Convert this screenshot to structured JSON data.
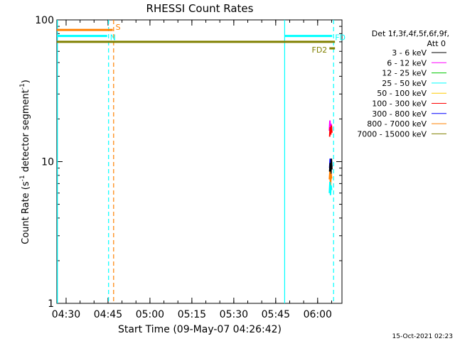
{
  "chart_data": {
    "type": "line",
    "title": "RHESSI Count Rates",
    "xlabel": "Start Time (09-May-07 04:26:42)",
    "ylabel_main": "Count Rate (s",
    "ylabel_sup1": "-1",
    "ylabel_mid": " detector segment",
    "ylabel_sup2": "-1",
    "ylabel_end": ")",
    "y_scale": "log",
    "ylim": [
      1,
      100
    ],
    "xlim_minutes": [
      0,
      102
    ],
    "x_ticks": [
      {
        "label": "04:30",
        "min": 3.3
      },
      {
        "label": "04:45",
        "min": 18.3
      },
      {
        "label": "05:00",
        "min": 33.3
      },
      {
        "label": "05:15",
        "min": 48.3
      },
      {
        "label": "05:30",
        "min": 63.3
      },
      {
        "label": "05:45",
        "min": 78.3
      },
      {
        "label": "06:00",
        "min": 93.3
      }
    ],
    "y_ticks": [
      {
        "label": "100",
        "value": 100
      },
      {
        "label": "10",
        "value": 10
      },
      {
        "label": "1",
        "value": 1
      }
    ],
    "legend": {
      "header": [
        "Det 1f,3f,4f,5f,6f,9f,",
        "Att 0"
      ],
      "placement": "right",
      "entries": [
        {
          "label": "3 - 6 keV",
          "color": "#000000"
        },
        {
          "label": "6 - 12 keV",
          "color": "#ff00ff"
        },
        {
          "label": "12 - 25 keV",
          "color": "#00cc00"
        },
        {
          "label": "25 - 50 keV",
          "color": "#00ffff"
        },
        {
          "label": "50 - 100 keV",
          "color": "#ffcc00"
        },
        {
          "label": "100 - 300 keV",
          "color": "#ff0000"
        },
        {
          "label": "300 - 800 keV",
          "color": "#0000ff"
        },
        {
          "label": "800 - 7000 keV",
          "color": "#ff8000"
        },
        {
          "label": "7000 - 15000 keV",
          "color": "#808000"
        }
      ]
    },
    "flag_bars": [
      {
        "label": "S",
        "color": "#ff8000",
        "y": 85,
        "x_start": 0,
        "x_end": 20
      },
      {
        "label": "N",
        "color": "#00ffff",
        "y": 77,
        "x_start": 0,
        "x_end": 18,
        "label_inline": true
      },
      {
        "label": "",
        "color": "#808000",
        "y": 70,
        "x_start": 0,
        "x_end": 99.5
      },
      {
        "label": "FD",
        "color": "#00ffff",
        "y": 77,
        "x_start": 81.5,
        "x_end": 98.5
      },
      {
        "label": "FD2",
        "color": "#808000",
        "y": 63,
        "x_start": 97.5,
        "x_end": 99.5,
        "label_left": true
      }
    ],
    "vertical_lines": [
      {
        "min": 0.2,
        "color": "#00ffff",
        "style": "solid"
      },
      {
        "min": 18.5,
        "color": "#00ffff",
        "style": "dashed"
      },
      {
        "min": 20.3,
        "color": "#ff8000",
        "style": "dashed"
      },
      {
        "min": 81.5,
        "color": "#00ffff",
        "style": "solid"
      },
      {
        "min": 99.0,
        "color": "#00ffff",
        "style": "dashed"
      }
    ],
    "series": [
      {
        "name": "6 - 12 keV",
        "color": "#ff00ff",
        "x": [
          97.5,
          97.7,
          97.9,
          98.1,
          98.3
        ],
        "y": [
          16.5,
          19.5,
          15.5,
          18.5,
          17.0
        ]
      },
      {
        "name": "100 - 300 keV",
        "color": "#ff0000",
        "x": [
          97.6,
          97.8,
          98.0,
          98.2,
          98.4
        ],
        "y": [
          15.0,
          17.5,
          15.5,
          18.0,
          16.0
        ]
      },
      {
        "name": "300 - 800 keV",
        "color": "#0000ff",
        "x": [
          97.6,
          97.8,
          98.0,
          98.2,
          98.4
        ],
        "y": [
          9.0,
          10.5,
          8.5,
          10.0,
          9.2
        ]
      },
      {
        "name": "3 - 6 keV",
        "color": "#000000",
        "x": [
          97.6,
          97.8,
          98.0,
          98.2,
          98.4
        ],
        "y": [
          8.5,
          9.8,
          7.5,
          10.5,
          8.8
        ]
      },
      {
        "name": "800 - 7000 keV",
        "color": "#ff8000",
        "x": [
          97.5,
          97.7,
          97.9,
          98.1,
          98.3
        ],
        "y": [
          7.5,
          8.5,
          6.8,
          8.2,
          7.6
        ]
      },
      {
        "name": "25 - 50 keV",
        "color": "#00ffff",
        "x": [
          97.5,
          97.7,
          97.9,
          98.1,
          98.3
        ],
        "y": [
          6.0,
          7.2,
          5.8,
          6.8,
          6.3
        ]
      }
    ],
    "grid": false
  },
  "footer": {
    "date": "15-Oct-2021 02:23"
  }
}
